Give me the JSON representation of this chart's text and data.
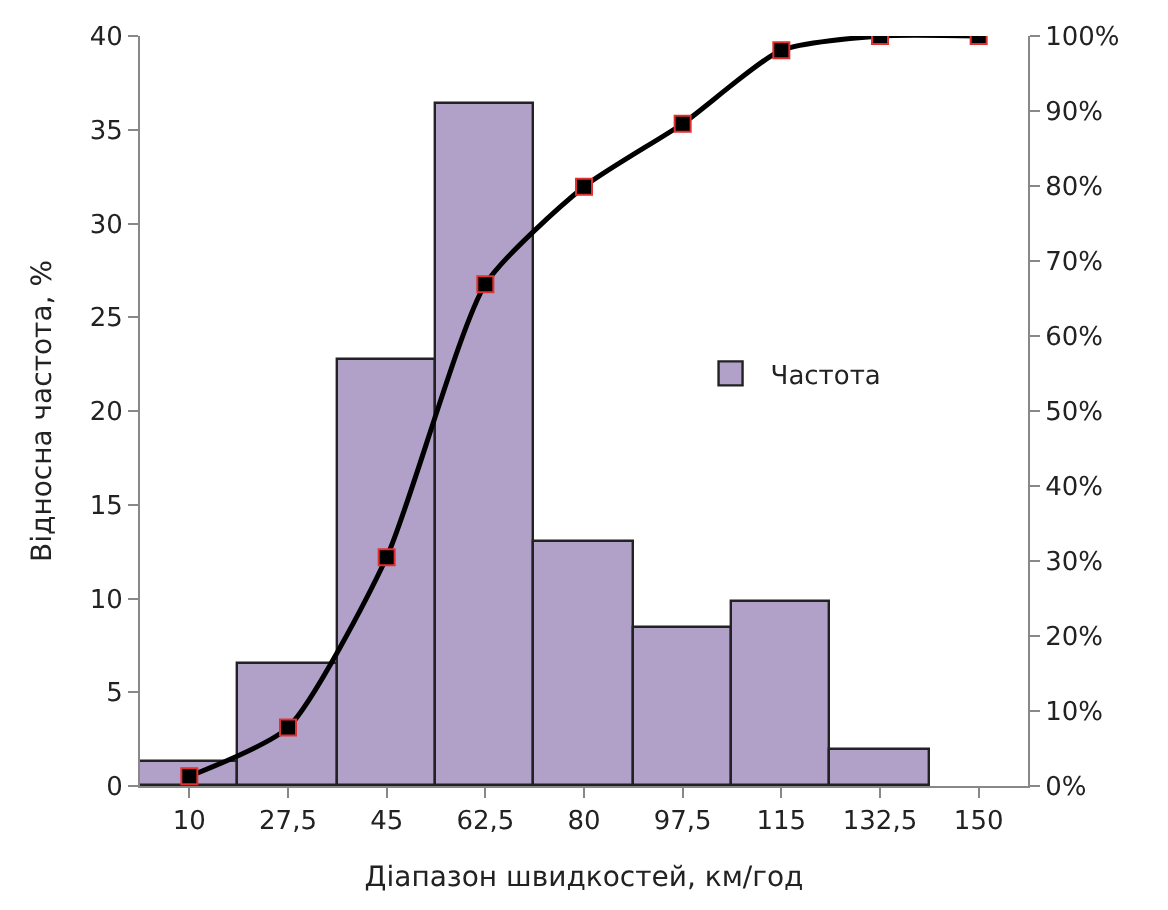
{
  "chart_data": {
    "type": "bar",
    "xlabel": "Діапазон швидкостей, км/год",
    "ylabel": "Відносна частота, %",
    "categories": [
      "10",
      "27,5",
      "45",
      "62,5",
      "80",
      "97,5",
      "115",
      "132,5",
      "150"
    ],
    "series": [
      {
        "name": "Частота",
        "color": "#b1a0c7",
        "values": [
          1.3,
          6.5,
          22.7,
          36.4,
          13.0,
          8.4,
          9.8,
          1.9,
          null
        ]
      },
      {
        "type": "line",
        "axis": "y2",
        "color": "#000000",
        "marker": "square",
        "line_style": "solid",
        "values": [
          1.3,
          7.8,
          30.5,
          66.9,
          79.9,
          88.3,
          98.1,
          100,
          100
        ]
      }
    ],
    "ylim": [
      0,
      40
    ],
    "yticks": [
      0,
      5,
      10,
      15,
      20,
      25,
      30,
      35,
      40
    ],
    "y2lim": [
      0,
      100
    ],
    "y2ticks": [
      {
        "value": 0,
        "label": "0%"
      },
      {
        "value": 10,
        "label": "10%"
      },
      {
        "value": 20,
        "label": "20%"
      },
      {
        "value": 30,
        "label": "30%"
      },
      {
        "value": 40,
        "label": "40%"
      },
      {
        "value": 50,
        "label": "50%"
      },
      {
        "value": 60,
        "label": "60%"
      },
      {
        "value": 70,
        "label": "70%"
      },
      {
        "value": 80,
        "label": "80%"
      },
      {
        "value": 90,
        "label": "90%"
      },
      {
        "value": 100,
        "label": "100%"
      }
    ],
    "legend": "right"
  }
}
